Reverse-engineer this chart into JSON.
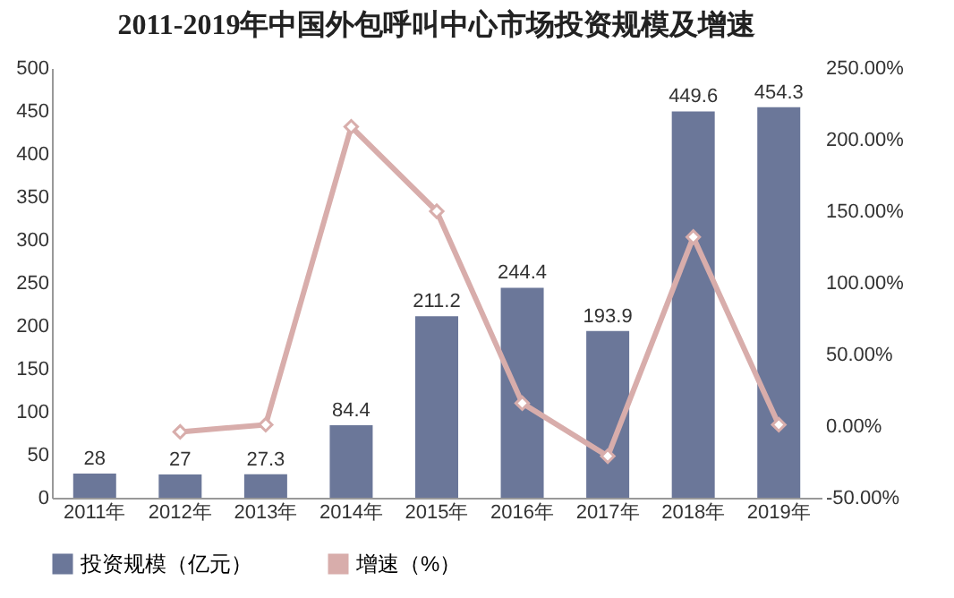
{
  "chart_data": {
    "type": "bar",
    "title": "2011-2019年中国外包呼叫中心市场投资规模及增速",
    "categories": [
      "2011年",
      "2012年",
      "2013年",
      "2014年",
      "2015年",
      "2016年",
      "2017年",
      "2018年",
      "2019年"
    ],
    "series": [
      {
        "name": "投资规模（亿元）",
        "color": "#6b7799",
        "values": [
          28,
          27,
          27.3,
          84.4,
          211.2,
          244.4,
          193.9,
          449.6,
          454.3
        ],
        "data_labels": true
      },
      {
        "name": "增速（%）",
        "type": "line",
        "axis": "y2",
        "color": "#d8adab",
        "marker": "diamond",
        "values": [
          null,
          -4,
          1,
          209,
          150,
          16,
          -21,
          132,
          1
        ]
      }
    ],
    "ylim": [
      0,
      500
    ],
    "yticks": [
      0,
      50,
      100,
      150,
      200,
      250,
      300,
      350,
      400,
      450,
      500
    ],
    "y2lim": [
      -50,
      250
    ],
    "y2ticks": [
      {
        "value": -50,
        "label": "-50.00%"
      },
      {
        "value": 0,
        "label": "0.00%"
      },
      {
        "value": 50,
        "label": "50.00%"
      },
      {
        "value": 100,
        "label": "100.00%"
      },
      {
        "value": 150,
        "label": "150.00%"
      },
      {
        "value": 200,
        "label": "200.00%"
      },
      {
        "value": 250,
        "label": "250.00%"
      }
    ],
    "legend": "bottom",
    "grid": false
  }
}
